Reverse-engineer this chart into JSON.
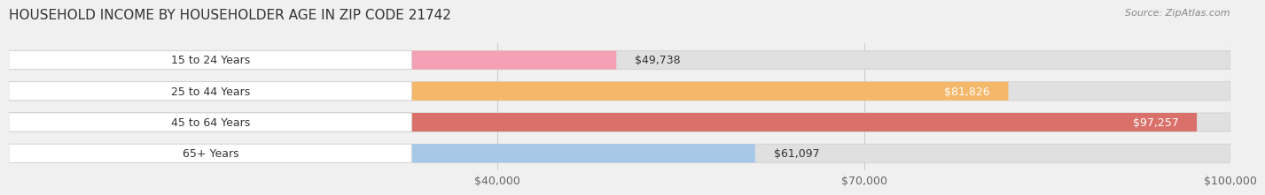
{
  "title": "HOUSEHOLD INCOME BY HOUSEHOLDER AGE IN ZIP CODE 21742",
  "source": "Source: ZipAtlas.com",
  "categories": [
    "15 to 24 Years",
    "25 to 44 Years",
    "45 to 64 Years",
    "65+ Years"
  ],
  "values": [
    49738,
    81826,
    97257,
    61097
  ],
  "bar_colors": [
    "#f4a0b5",
    "#f5b76a",
    "#d9706a",
    "#a8c8e8"
  ],
  "label_colors": [
    "#333333",
    "#ffffff",
    "#ffffff",
    "#333333"
  ],
  "x_min": 0,
  "x_max": 100000,
  "x_ticks": [
    40000,
    70000,
    100000
  ],
  "x_tick_labels": [
    "$40,000",
    "$70,000",
    "$100,000"
  ],
  "background_color": "#f0f0f0",
  "bar_bg_color": "#e0e0e0",
  "title_fontsize": 11,
  "source_fontsize": 8,
  "tick_fontsize": 9,
  "bar_label_fontsize": 9,
  "category_fontsize": 9
}
